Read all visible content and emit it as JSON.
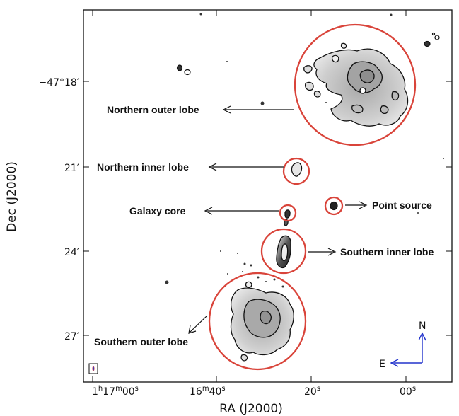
{
  "figure": {
    "x_axis_title": "RA (J2000)",
    "y_axis_title": "Dec (J2000)",
    "x_ticks": [
      {
        "h": "1",
        "m": "17",
        "s": "00",
        "minutes_shown": true
      },
      {
        "m": "16",
        "s": "40"
      },
      {
        "s": "20"
      },
      {
        "s": "00"
      }
    ],
    "y_ticks": [
      "−47°18′",
      "21′",
      "24′",
      "27′"
    ],
    "annotations": [
      {
        "label": "Northern outer lobe",
        "direction": "to-source"
      },
      {
        "label": "Northern inner lobe",
        "direction": "to-source"
      },
      {
        "label": "Galaxy core",
        "direction": "to-source"
      },
      {
        "label": "Point source",
        "direction": "away-from-source"
      },
      {
        "label": "Southern inner lobe",
        "direction": "away-from-source"
      },
      {
        "label": "Southern outer lobe",
        "direction": "to-label"
      }
    ],
    "compass": {
      "north": "N",
      "east": "E",
      "color": "#2233cc"
    },
    "colors": {
      "circle": "#d9443a",
      "contour": "#111111",
      "beam": "#2233cc"
    }
  }
}
